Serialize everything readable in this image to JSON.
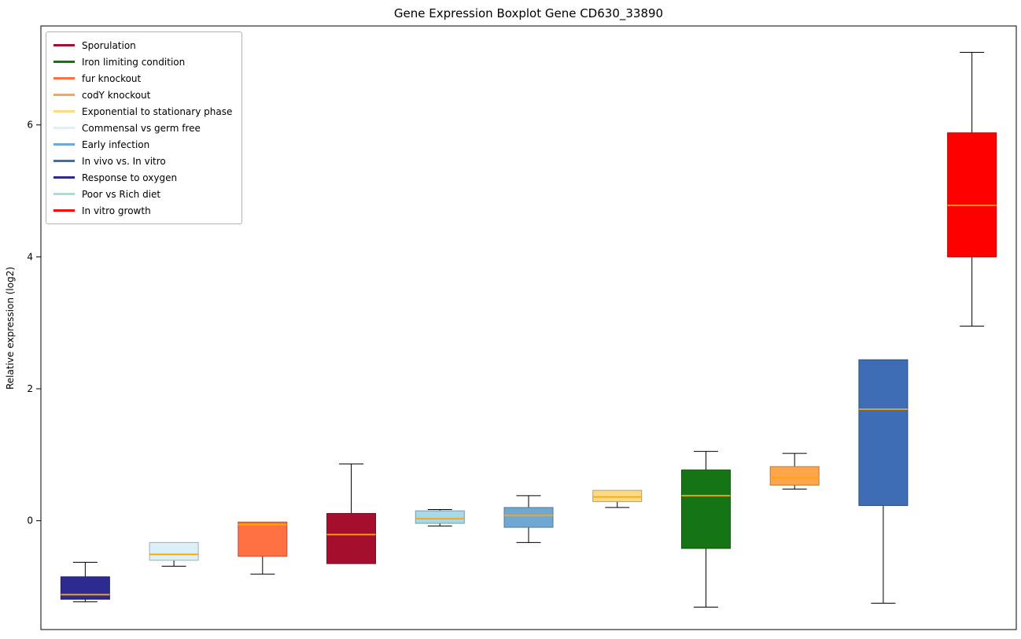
{
  "chart_data": {
    "type": "boxplot",
    "title": "Gene Expression Boxplot Gene CD630_33890",
    "ylabel": "Relative expression (log2)",
    "xlabel": "",
    "ylim": [
      -1.65,
      7.5
    ],
    "yticks": [
      0,
      2,
      4,
      6
    ],
    "grid": false,
    "legend_position": "upper left",
    "median_color": "#ffa500",
    "series": [
      {
        "name": "Response to oxygen",
        "color": "#2d2b8f",
        "whisker_low": -1.23,
        "q1": -1.19,
        "median": -1.12,
        "q3": -0.85,
        "whisker_high": -0.63
      },
      {
        "name": "Commensal vs germ free",
        "color": "#dcf1f7",
        "whisker_low": -0.69,
        "q1": -0.6,
        "median": -0.51,
        "q3": -0.33,
        "whisker_high": -0.33
      },
      {
        "name": "fur knockout",
        "color": "#ff7043",
        "whisker_low": -0.81,
        "q1": -0.54,
        "median": -0.06,
        "q3": -0.02,
        "whisker_high": -0.02
      },
      {
        "name": "Sporulation",
        "color": "#a50e2d",
        "whisker_low": -0.65,
        "q1": -0.65,
        "median": -0.21,
        "q3": 0.11,
        "whisker_high": 0.86
      },
      {
        "name": "Poor vs Rich diet",
        "color": "#a8d8ea",
        "whisker_low": -0.08,
        "q1": -0.04,
        "median": 0.03,
        "q3": 0.15,
        "whisker_high": 0.17
      },
      {
        "name": "Early infection",
        "color": "#6fa8d2",
        "whisker_low": -0.33,
        "q1": -0.1,
        "median": 0.08,
        "q3": 0.2,
        "whisker_high": 0.38
      },
      {
        "name": "Exponential to stationary phase",
        "color": "#ffda85",
        "whisker_low": 0.2,
        "q1": 0.29,
        "median": 0.36,
        "q3": 0.46,
        "whisker_high": 0.46
      },
      {
        "name": "Iron limiting condition",
        "color": "#157515",
        "whisker_low": -1.31,
        "q1": -0.42,
        "median": 0.38,
        "q3": 0.77,
        "whisker_high": 1.05
      },
      {
        "name": "codY knockout",
        "color": "#ffa64d",
        "whisker_low": 0.48,
        "q1": 0.54,
        "median": 0.65,
        "q3": 0.82,
        "whisker_high": 1.02
      },
      {
        "name": "In vivo vs. In vitro",
        "color": "#3e6db5",
        "whisker_low": -1.25,
        "q1": 0.23,
        "median": 1.69,
        "q3": 2.44,
        "whisker_high": 2.44
      },
      {
        "name": "In vitro growth",
        "color": "#fe0000",
        "whisker_low": 2.95,
        "q1": 4.0,
        "median": 4.78,
        "q3": 5.88,
        "whisker_high": 7.1
      }
    ],
    "legend": [
      {
        "label": "Sporulation",
        "color": "#a50e2d"
      },
      {
        "label": "Iron limiting condition",
        "color": "#157515"
      },
      {
        "label": "fur knockout",
        "color": "#ff7043"
      },
      {
        "label": "codY knockout",
        "color": "#ffa64d"
      },
      {
        "label": "Exponential to stationary phase",
        "color": "#ffda85"
      },
      {
        "label": "Commensal vs germ free",
        "color": "#dcf1f7"
      },
      {
        "label": "Early infection",
        "color": "#6fa8d2"
      },
      {
        "label": "In vivo vs. In vitro",
        "color": "#3e6db5"
      },
      {
        "label": "Response to oxygen",
        "color": "#2d2b8f"
      },
      {
        "label": "Poor vs Rich diet",
        "color": "#a8d8ea"
      },
      {
        "label": "In vitro growth",
        "color": "#fe0000"
      }
    ]
  }
}
